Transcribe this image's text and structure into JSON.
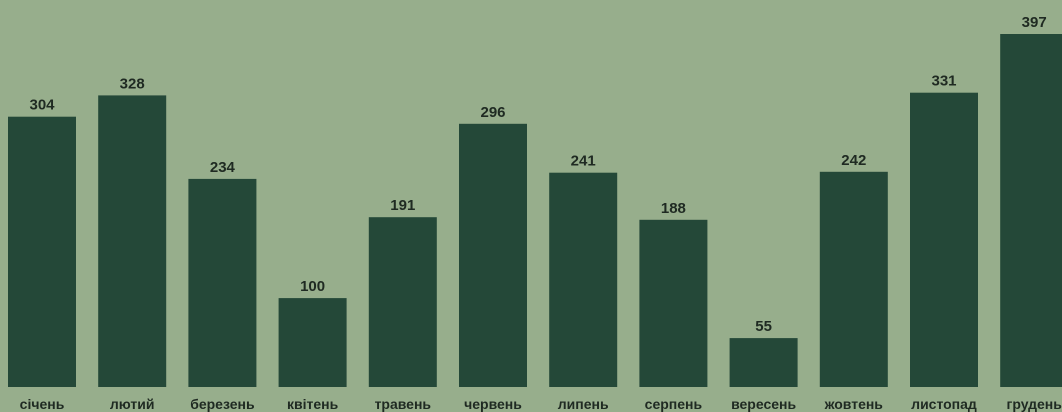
{
  "chart_data": {
    "type": "bar",
    "categories": [
      "січень",
      "лютий",
      "березень",
      "квітень",
      "травень",
      "червень",
      "липень",
      "серпень",
      "вересень",
      "жовтень",
      "листопад",
      "грудень"
    ],
    "values": [
      304,
      328,
      234,
      100,
      191,
      296,
      241,
      188,
      55,
      242,
      331,
      397
    ],
    "title": "",
    "xlabel": "",
    "ylabel": "",
    "ylim": [
      0,
      397
    ],
    "grid": false,
    "legend": "none",
    "colors": {
      "background": "#97ae8c",
      "bar": "#244838",
      "text": "#1f2a22"
    }
  }
}
